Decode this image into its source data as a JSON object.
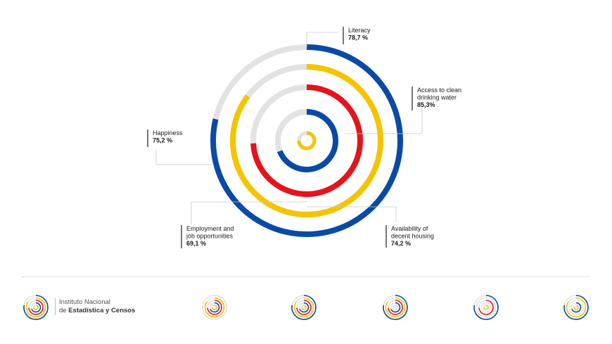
{
  "chart_data": {
    "type": "radial-bar",
    "max": 100,
    "series": [
      {
        "label": "Literacy",
        "value": 78.7,
        "value_text": "78,7 %",
        "color": "#0a4aa6"
      },
      {
        "label": "Access to clean drinking water",
        "value": 85.3,
        "value_text": "85,3%",
        "color": "#f5c400"
      },
      {
        "label": "Availability of decent housing",
        "value": 74.2,
        "value_text": "74,2 %",
        "color": "#e3151b"
      },
      {
        "label": "Employment and job opportunities",
        "value": 69.1,
        "value_text": "69,1 %",
        "color": "#0a4aa6"
      },
      {
        "label": "Happiness",
        "value": 75.2,
        "value_text": "75,2 %",
        "color": "#f5c400"
      }
    ],
    "track_color": "#e2e2e2"
  },
  "footer": {
    "org_line1": "Instituto Nacional",
    "org_line2_prefix": "de ",
    "org_line2_bold": "Estadística y Censos"
  }
}
